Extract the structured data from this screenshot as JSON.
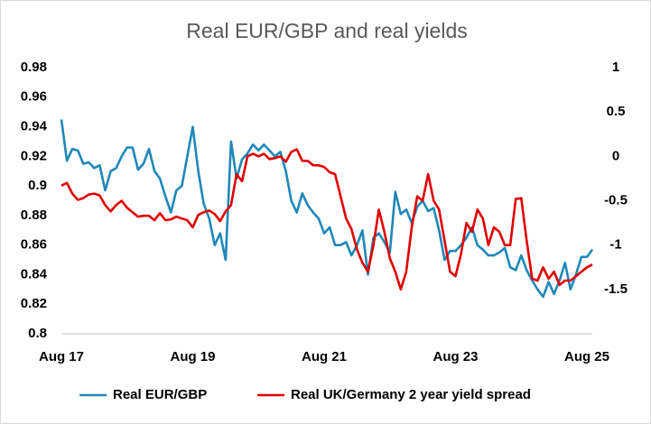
{
  "chart_data": {
    "type": "line",
    "title": "Real EUR/GBP and real yields",
    "categories": [
      "Aug 17",
      null,
      null,
      null,
      null,
      null,
      null,
      null,
      null,
      null,
      null,
      null,
      null,
      null,
      null,
      null,
      null,
      null,
      null,
      null,
      null,
      null,
      null,
      null,
      "Aug 19",
      null,
      null,
      null,
      null,
      null,
      null,
      null,
      null,
      null,
      null,
      null,
      null,
      null,
      null,
      null,
      null,
      null,
      null,
      null,
      null,
      null,
      null,
      null,
      "Aug 21",
      null,
      null,
      null,
      null,
      null,
      null,
      null,
      null,
      null,
      null,
      null,
      null,
      null,
      null,
      null,
      null,
      null,
      null,
      null,
      null,
      null,
      null,
      null,
      "Aug 23",
      null,
      null,
      null,
      null,
      null,
      null,
      null,
      null,
      null,
      null,
      null,
      null,
      null,
      null,
      null,
      null,
      null,
      null,
      null,
      null,
      null,
      null,
      null,
      "Aug 25",
      null
    ],
    "series": [
      {
        "name": "Real EUR/GBP",
        "color": "#1f88b8",
        "axis": "y",
        "values": [
          0.945,
          0.917,
          0.925,
          0.924,
          0.915,
          0.916,
          0.912,
          0.914,
          0.897,
          0.91,
          0.912,
          0.92,
          0.926,
          0.926,
          0.911,
          0.915,
          0.925,
          0.91,
          0.905,
          0.893,
          0.882,
          0.897,
          0.9,
          0.92,
          0.94,
          0.91,
          0.888,
          0.878,
          0.86,
          0.868,
          0.85,
          0.93,
          0.905,
          0.918,
          0.922,
          0.928,
          0.924,
          0.928,
          0.924,
          0.92,
          0.923,
          0.91,
          0.89,
          0.882,
          0.895,
          0.887,
          0.882,
          0.878,
          0.868,
          0.872,
          0.86,
          0.86,
          0.862,
          0.853,
          0.86,
          0.87,
          0.84,
          0.865,
          0.868,
          0.862,
          0.855,
          0.896,
          0.881,
          0.884,
          0.875,
          0.886,
          0.89,
          0.883,
          0.885,
          0.87,
          0.85,
          0.856,
          0.856,
          0.86,
          0.865,
          0.872,
          0.86,
          0.857,
          0.853,
          0.853,
          0.855,
          0.858,
          0.845,
          0.843,
          0.853,
          0.843,
          0.836,
          0.83,
          0.825,
          0.835,
          0.827,
          0.836,
          0.848,
          0.83,
          0.84,
          0.852,
          0.852,
          0.857
        ]
      },
      {
        "name": "Real UK/Germany 2 year yield spread",
        "color": "#e00000",
        "axis": "y2",
        "values": [
          -0.33,
          -0.3,
          -0.42,
          -0.49,
          -0.47,
          -0.43,
          -0.42,
          -0.44,
          -0.55,
          -0.62,
          -0.55,
          -0.5,
          -0.58,
          -0.63,
          -0.68,
          -0.67,
          -0.67,
          -0.72,
          -0.64,
          -0.72,
          -0.71,
          -0.68,
          -0.7,
          -0.72,
          -0.8,
          -0.66,
          -0.63,
          -0.61,
          -0.65,
          -0.73,
          -0.62,
          -0.55,
          -0.2,
          -0.28,
          0.0,
          0.03,
          0.0,
          0.03,
          -0.03,
          -0.02,
          0.0,
          -0.06,
          0.05,
          0.08,
          -0.05,
          -0.05,
          -0.1,
          -0.1,
          -0.12,
          -0.18,
          -0.2,
          -0.45,
          -0.7,
          -0.82,
          -1.05,
          -1.2,
          -1.3,
          -1.0,
          -0.6,
          -0.85,
          -1.15,
          -1.3,
          -1.5,
          -1.3,
          -0.8,
          -0.45,
          -0.5,
          -0.2,
          -0.5,
          -0.6,
          -0.95,
          -1.3,
          -1.35,
          -1.1,
          -0.75,
          -0.85,
          -0.6,
          -0.7,
          -1.0,
          -0.8,
          -0.85,
          -1.0,
          -1.0,
          -0.48,
          -0.47,
          -0.95,
          -1.38,
          -1.4,
          -1.25,
          -1.38,
          -1.3,
          -1.45,
          -1.4,
          -1.4,
          -1.35,
          -1.3,
          -1.25,
          -1.22
        ]
      }
    ],
    "ylim": [
      0.8,
      0.98
    ],
    "yticks": [
      0.8,
      0.82,
      0.84,
      0.86,
      0.88,
      0.9,
      0.92,
      0.94,
      0.96,
      0.98
    ],
    "y2lim": [
      -2,
      1
    ],
    "y2ticks": [
      -1.5,
      -1,
      -0.5,
      0,
      0.5,
      1
    ],
    "grid": false,
    "legend": "bottom"
  }
}
